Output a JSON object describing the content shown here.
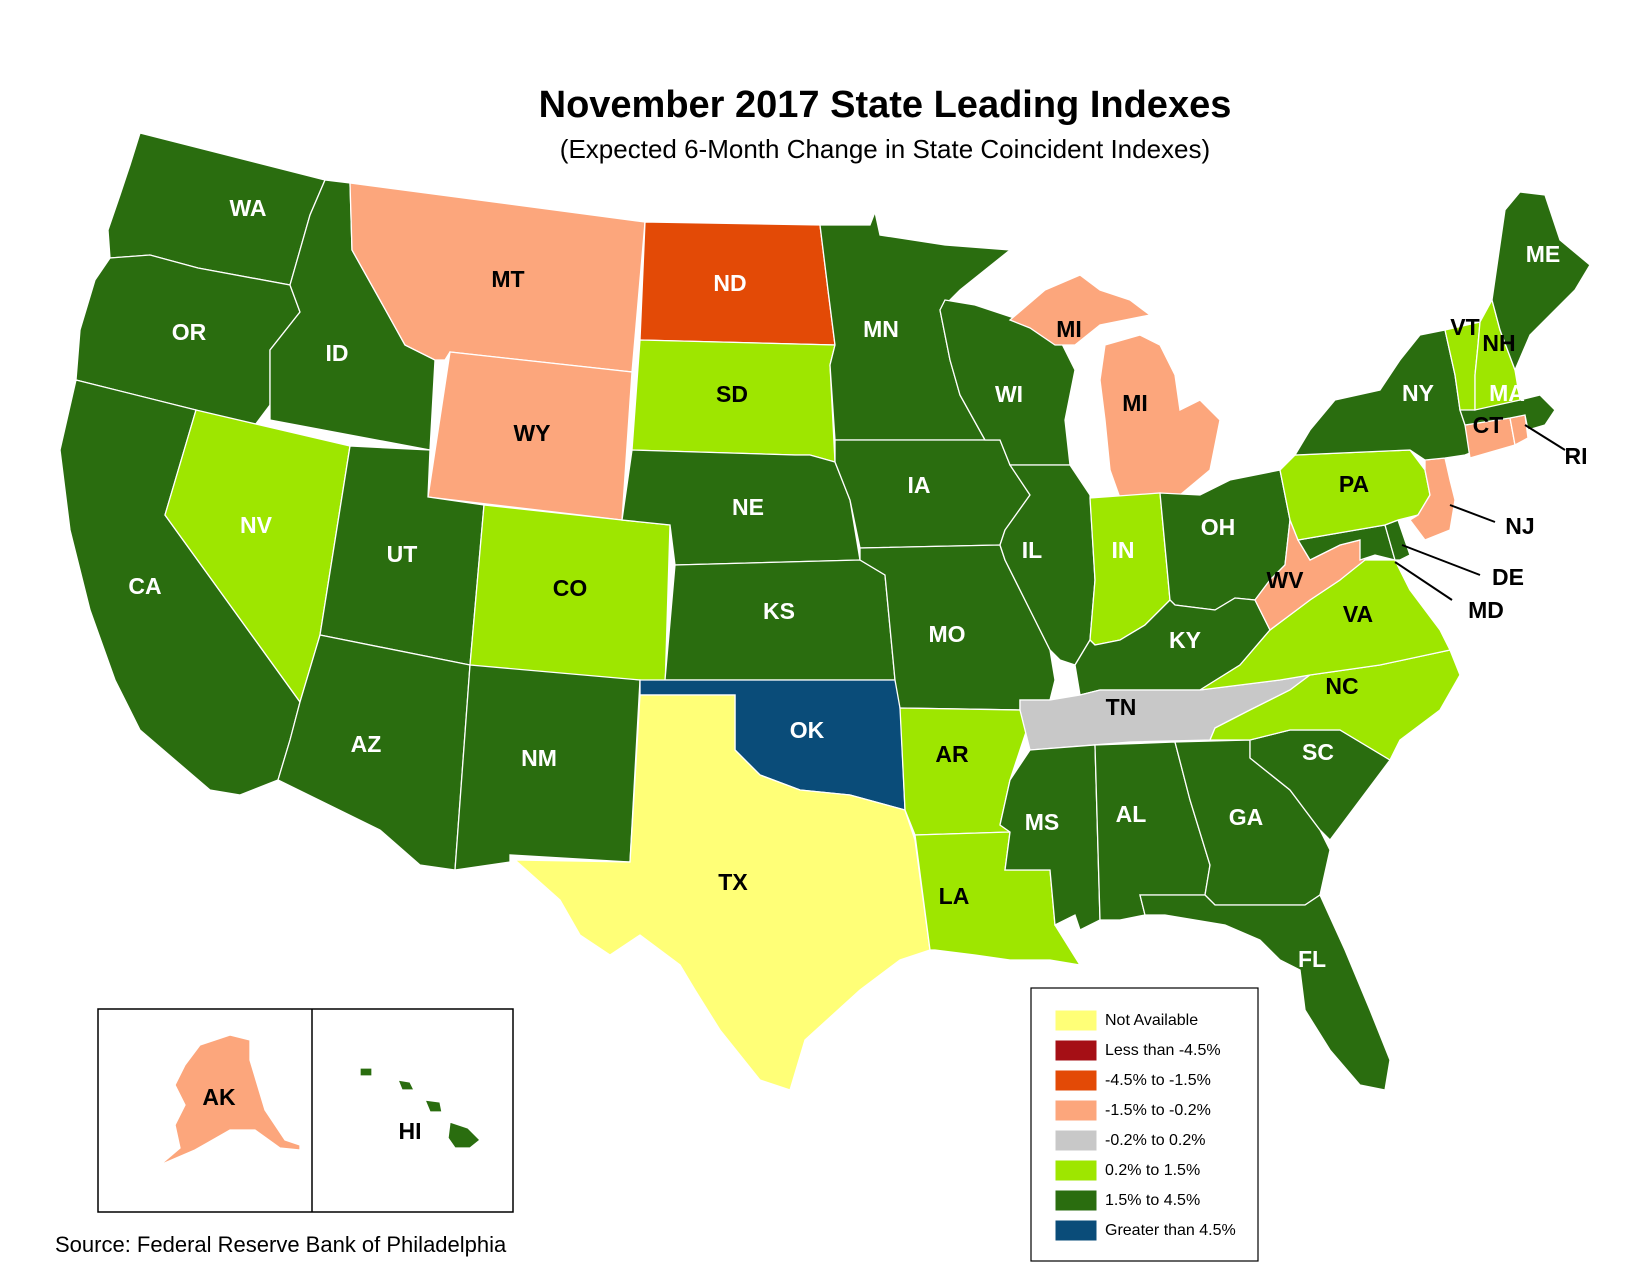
{
  "title": "November 2017 State Leading Indexes",
  "subtitle": "(Expected 6-Month Change in State Coincident Indexes)",
  "source": "Source: Federal Reserve Bank of Philadelphia",
  "colors": {
    "na": "#ffff77",
    "lt_m45": "#a50f15",
    "m45_m15": "#e34a06",
    "m15_m02": "#fca67c",
    "m02_02": "#c8c8c8",
    "p02_15": "#9ee600",
    "p15_45": "#2a6d0f",
    "gt45": "#0a4c79"
  },
  "legend": [
    {
      "label": "Not Available",
      "color": "#ffff77"
    },
    {
      "label": "Less than -4.5%",
      "color": "#a50f15"
    },
    {
      "label": "-4.5% to -1.5%",
      "color": "#e34a06"
    },
    {
      "label": "-1.5% to -0.2%",
      "color": "#fca67c"
    },
    {
      "label": "-0.2% to 0.2%",
      "color": "#c8c8c8"
    },
    {
      "label": "0.2% to 1.5%",
      "color": "#9ee600"
    },
    {
      "label": "1.5% to 4.5%",
      "color": "#2a6d0f"
    },
    {
      "label": "Greater than 4.5%",
      "color": "#0a4c79"
    }
  ],
  "states": {
    "WA": {
      "label": "WA",
      "category": "1.5% to 4.5%"
    },
    "OR": {
      "label": "OR",
      "category": "1.5% to 4.5%"
    },
    "CA": {
      "label": "CA",
      "category": "1.5% to 4.5%"
    },
    "ID": {
      "label": "ID",
      "category": "1.5% to 4.5%"
    },
    "NV": {
      "label": "NV",
      "category": "0.2% to 1.5%"
    },
    "MT": {
      "label": "MT",
      "category": "-1.5% to -0.2%"
    },
    "WY": {
      "label": "WY",
      "category": "-1.5% to -0.2%"
    },
    "UT": {
      "label": "UT",
      "category": "1.5% to 4.5%"
    },
    "AZ": {
      "label": "AZ",
      "category": "1.5% to 4.5%"
    },
    "CO": {
      "label": "CO",
      "category": "0.2% to 1.5%"
    },
    "NM": {
      "label": "NM",
      "category": "1.5% to 4.5%"
    },
    "ND": {
      "label": "ND",
      "category": "-4.5% to -1.5%"
    },
    "SD": {
      "label": "SD",
      "category": "0.2% to 1.5%"
    },
    "NE": {
      "label": "NE",
      "category": "1.5% to 4.5%"
    },
    "KS": {
      "label": "KS",
      "category": "1.5% to 4.5%"
    },
    "OK": {
      "label": "OK",
      "category": "Greater than 4.5%"
    },
    "TX": {
      "label": "TX",
      "category": "Not Available"
    },
    "MN": {
      "label": "MN",
      "category": "1.5% to 4.5%"
    },
    "IA": {
      "label": "IA",
      "category": "1.5% to 4.5%"
    },
    "MO": {
      "label": "MO",
      "category": "1.5% to 4.5%"
    },
    "AR": {
      "label": "AR",
      "category": "0.2% to 1.5%"
    },
    "LA": {
      "label": "LA",
      "category": "0.2% to 1.5%"
    },
    "WI": {
      "label": "WI",
      "category": "1.5% to 4.5%"
    },
    "IL": {
      "label": "IL",
      "category": "1.5% to 4.5%"
    },
    "MI": {
      "label": "MI",
      "category": "-1.5% to -0.2%"
    },
    "IN": {
      "label": "IN",
      "category": "0.2% to 1.5%"
    },
    "OH": {
      "label": "OH",
      "category": "1.5% to 4.5%"
    },
    "KY": {
      "label": "KY",
      "category": "1.5% to 4.5%"
    },
    "TN": {
      "label": "TN",
      "category": "-0.2% to 0.2%"
    },
    "MS": {
      "label": "MS",
      "category": "1.5% to 4.5%"
    },
    "AL": {
      "label": "AL",
      "category": "1.5% to 4.5%"
    },
    "GA": {
      "label": "GA",
      "category": "1.5% to 4.5%"
    },
    "FL": {
      "label": "FL",
      "category": "1.5% to 4.5%"
    },
    "SC": {
      "label": "SC",
      "category": "1.5% to 4.5%"
    },
    "NC": {
      "label": "NC",
      "category": "0.2% to 1.5%"
    },
    "VA": {
      "label": "VA",
      "category": "0.2% to 1.5%"
    },
    "WV": {
      "label": "WV",
      "category": "-1.5% to -0.2%"
    },
    "MD": {
      "label": "MD",
      "category": "1.5% to 4.5%"
    },
    "DE": {
      "label": "DE",
      "category": "1.5% to 4.5%"
    },
    "PA": {
      "label": "PA",
      "category": "0.2% to 1.5%"
    },
    "NJ": {
      "label": "NJ",
      "category": "-1.5% to -0.2%"
    },
    "NY": {
      "label": "NY",
      "category": "1.5% to 4.5%"
    },
    "CT": {
      "label": "CT",
      "category": "-1.5% to -0.2%"
    },
    "RI": {
      "label": "RI",
      "category": "-1.5% to -0.2%"
    },
    "MA": {
      "label": "MA",
      "category": "1.5% to 4.5%"
    },
    "VT": {
      "label": "VT",
      "category": "0.2% to 1.5%"
    },
    "NH": {
      "label": "NH",
      "category": "0.2% to 1.5%"
    },
    "ME": {
      "label": "ME",
      "category": "1.5% to 4.5%"
    },
    "AK": {
      "label": "AK",
      "category": "-1.5% to -0.2%"
    },
    "HI": {
      "label": "HI",
      "category": "1.5% to 4.5%"
    }
  }
}
